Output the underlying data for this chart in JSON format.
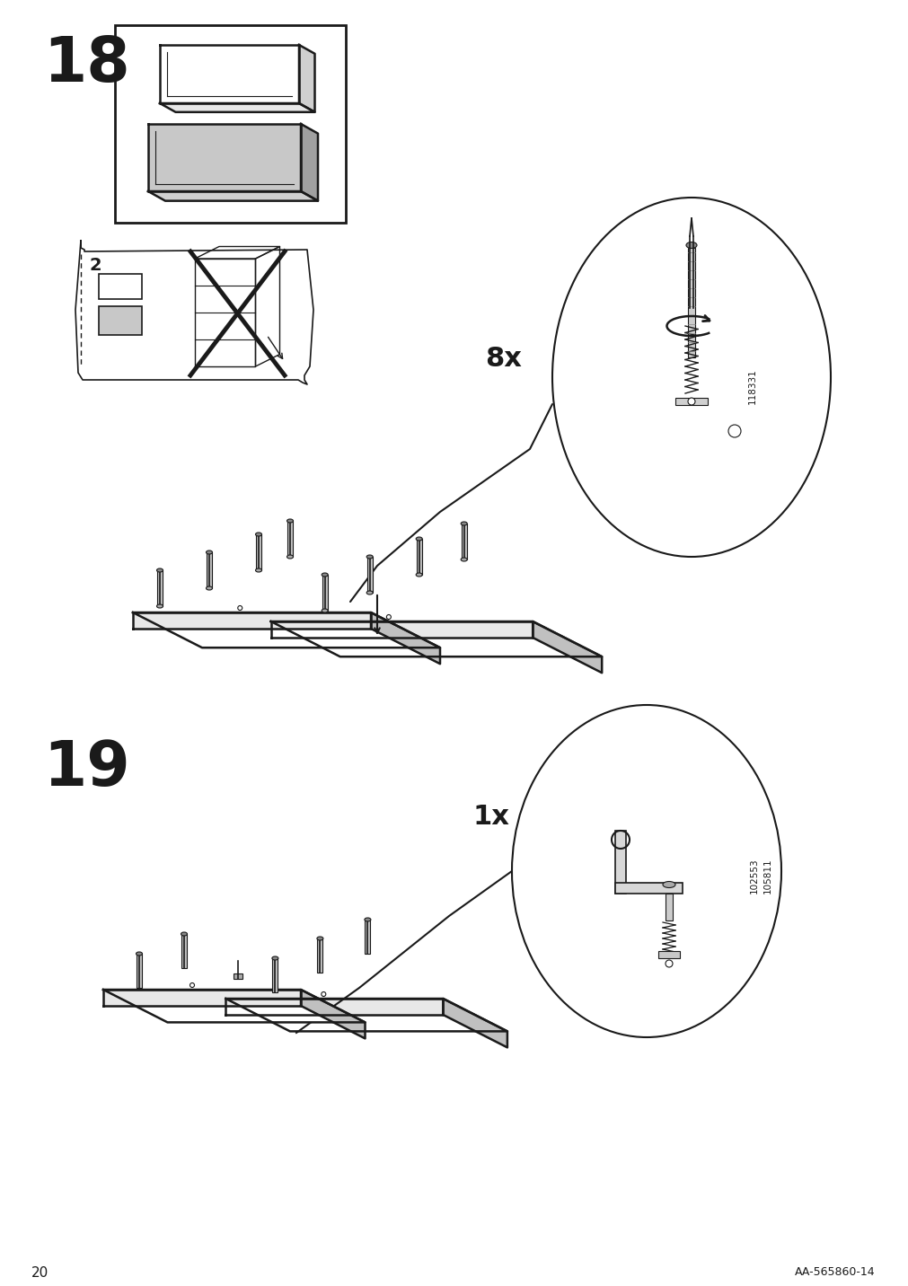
{
  "page_number": "20",
  "doc_number": "AA-565860-14",
  "step18_number": "18",
  "step19_number": "19",
  "bg_color": "#ffffff",
  "line_color": "#1a1a1a",
  "gray_fill": "#b8b8b8",
  "gray_light": "#e0e0e0",
  "gray_top": "#d8d8d8",
  "qty_8x": "8x",
  "qty_1x": "1x",
  "part_num_118331": "118331",
  "part_num_102553": "102553",
  "part_num_105811": "105811",
  "num_2": "2"
}
